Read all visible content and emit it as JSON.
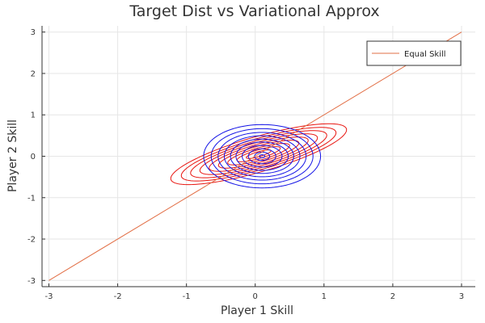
{
  "chart_data": {
    "type": "line",
    "title": "Target Dist vs Variational Approx",
    "xlabel": "Player 1 Skill",
    "ylabel": "Player 2 Skill",
    "xlim": [
      -3.1,
      3.2
    ],
    "ylim": [
      -3.15,
      3.15
    ],
    "xticks": [
      "-3",
      "-2",
      "-1",
      "0",
      "1",
      "2",
      "3"
    ],
    "yticks": [
      "-3",
      "-2",
      "-1",
      "0",
      "1",
      "2",
      "3"
    ],
    "grid": true,
    "legend_position": "top-right",
    "series": [
      {
        "name": "Equal Skill",
        "type": "line",
        "color": "#e26f46",
        "x": [
          -3,
          3
        ],
        "y": [
          -3,
          3
        ]
      }
    ],
    "contours": [
      {
        "label": "target",
        "color": "#e8140f",
        "center": [
          0.05,
          0.05
        ],
        "angle_deg": 27,
        "axis_ratio": 0.28,
        "semi_major": [
          1.42,
          1.25,
          1.1,
          0.95,
          0.8,
          0.65,
          0.5,
          0.35,
          0.2
        ]
      },
      {
        "label": "variational",
        "color": "#1414e6",
        "center": [
          0.1,
          0.0
        ],
        "angle_deg": 0,
        "axis_ratio": 0.9,
        "semi_major": [
          0.85,
          0.74,
          0.64,
          0.55,
          0.46,
          0.38,
          0.29,
          0.2,
          0.11,
          0.04
        ]
      }
    ]
  }
}
